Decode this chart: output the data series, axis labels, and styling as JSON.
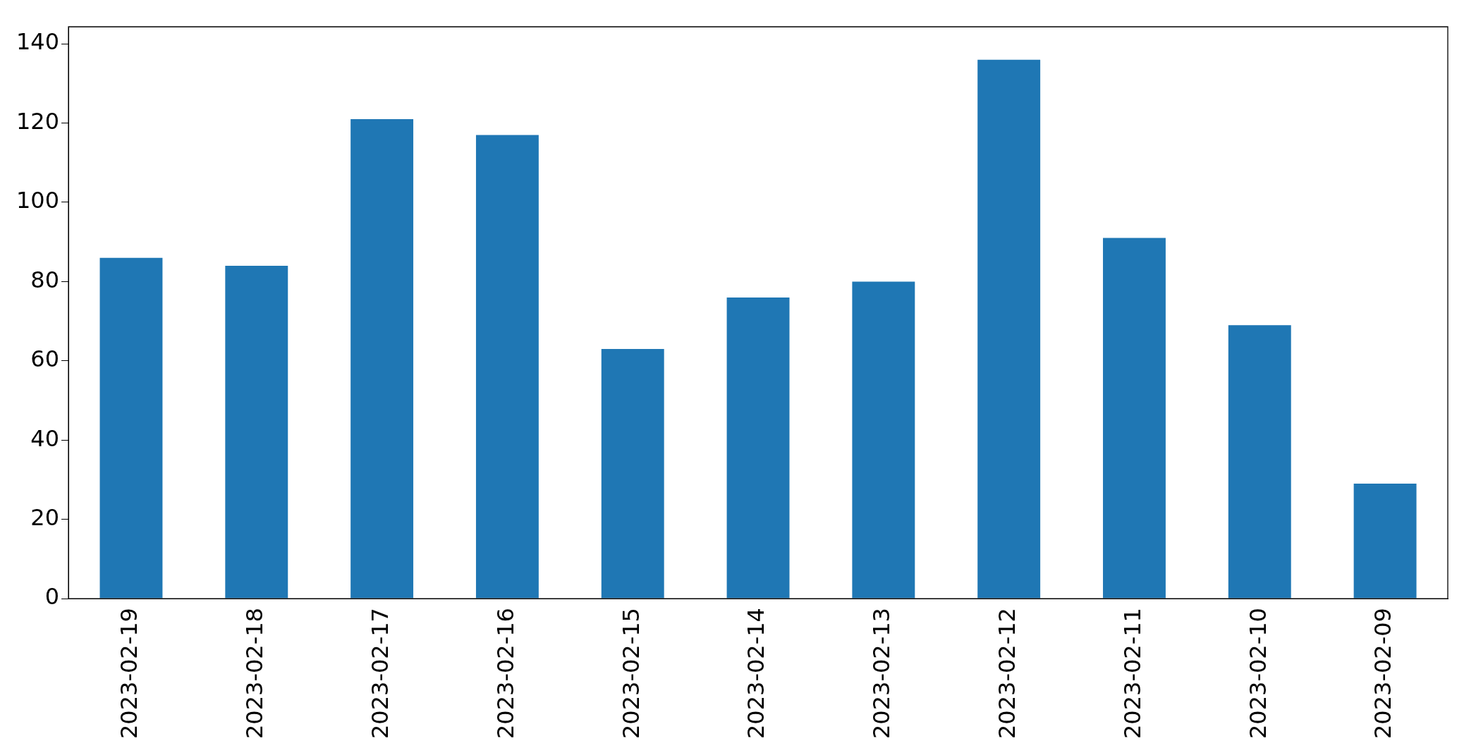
{
  "chart_data": {
    "type": "bar",
    "categories": [
      "2023-02-19",
      "2023-02-18",
      "2023-02-17",
      "2023-02-16",
      "2023-02-15",
      "2023-02-14",
      "2023-02-13",
      "2023-02-12",
      "2023-02-11",
      "2023-02-10",
      "2023-02-09"
    ],
    "values": [
      86,
      84,
      121,
      117,
      63,
      76,
      80,
      136,
      91,
      69,
      29
    ],
    "color": "#1f77b4",
    "ylim": [
      0,
      144.3
    ],
    "yticks": [
      0,
      20,
      40,
      60,
      80,
      100,
      120,
      140
    ],
    "grid": false,
    "legend": false
  }
}
